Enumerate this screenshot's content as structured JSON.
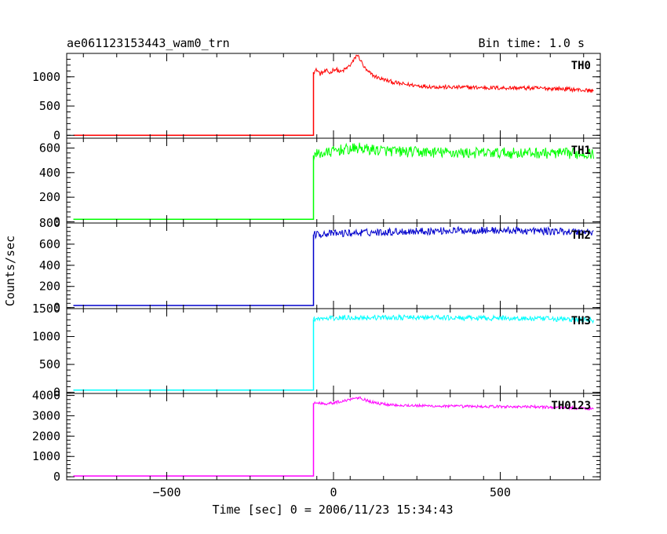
{
  "chart_data": {
    "type": "line",
    "title": "ae061123153443_wam0_trn",
    "bin_time_label": "Bin time: 1.0 s",
    "xlabel": "Time [sec] 0 = 2006/11/23 15:34:43",
    "ylabel": "Counts/sec",
    "xlim": [
      -800,
      800
    ],
    "xticks": [
      -500,
      0,
      500
    ],
    "xtick_labels": [
      "−500",
      "0",
      "500"
    ],
    "colors": {
      "TH0": "#ff0000",
      "TH1": "#00ff00",
      "TH2": "#0000cc",
      "TH3": "#00ffff",
      "TH0123": "#ff00ff"
    },
    "panels": [
      {
        "name": "TH0",
        "ylim": [
          -50,
          1400
        ],
        "yticks": [
          0,
          500,
          1000
        ],
        "ytick_labels": [
          "0",
          "500",
          "1000"
        ],
        "x": [
          -780,
          -60,
          -60,
          -50,
          -40,
          -30,
          -20,
          -10,
          0,
          10,
          20,
          30,
          40,
          50,
          60,
          70,
          80,
          90,
          100,
          120,
          140,
          170,
          200,
          250,
          300,
          350,
          400,
          450,
          500,
          550,
          600,
          650,
          700,
          750,
          780
        ],
        "y": [
          0,
          0,
          1080,
          1120,
          1050,
          1080,
          1100,
          1060,
          1130,
          1120,
          1080,
          1110,
          1150,
          1200,
          1270,
          1380,
          1300,
          1180,
          1100,
          1020,
          970,
          920,
          880,
          850,
          830,
          820,
          820,
          815,
          810,
          810,
          805,
          800,
          790,
          770,
          760
        ],
        "noise": 35
      },
      {
        "name": "TH1",
        "ylim": [
          -10,
          680
        ],
        "yticks": [
          0,
          200,
          400,
          600
        ],
        "ytick_labels": [
          "0",
          "200",
          "400",
          "600"
        ],
        "x": [
          -780,
          -60,
          -60,
          -40,
          -20,
          0,
          20,
          50,
          80,
          100,
          150,
          200,
          300,
          400,
          500,
          600,
          700,
          780
        ],
        "y": [
          20,
          20,
          540,
          555,
          560,
          575,
          585,
          590,
          600,
          590,
          580,
          570,
          565,
          560,
          560,
          560,
          555,
          555
        ],
        "noise": 45
      },
      {
        "name": "TH2",
        "ylim": [
          -10,
          800
        ],
        "yticks": [
          0,
          200,
          400,
          600,
          800
        ],
        "ytick_labels": [
          "0",
          "200",
          "400",
          "600",
          "800"
        ],
        "x": [
          -780,
          -60,
          -60,
          -30,
          0,
          50,
          100,
          200,
          300,
          400,
          500,
          600,
          700,
          780
        ],
        "y": [
          20,
          20,
          690,
          700,
          700,
          705,
          710,
          720,
          725,
          730,
          730,
          725,
          720,
          715
        ],
        "noise": 35
      },
      {
        "name": "TH3",
        "ylim": [
          -20,
          1500
        ],
        "yticks": [
          0,
          500,
          1000,
          1500
        ],
        "ytick_labels": [
          "0",
          "500",
          "1000",
          "1500"
        ],
        "x": [
          -780,
          -60,
          -60,
          -30,
          0,
          50,
          100,
          200,
          300,
          400,
          500,
          600,
          700,
          780
        ],
        "y": [
          40,
          40,
          1310,
          1320,
          1330,
          1340,
          1340,
          1340,
          1340,
          1330,
          1330,
          1320,
          1310,
          1290
        ],
        "noise": 45
      },
      {
        "name": "TH0123",
        "ylim": [
          -150,
          4100
        ],
        "yticks": [
          0,
          1000,
          2000,
          3000,
          4000
        ],
        "ytick_labels": [
          "0",
          "1000",
          "2000",
          "3000",
          "4000"
        ],
        "x": [
          -780,
          -60,
          -60,
          -40,
          -20,
          0,
          20,
          40,
          60,
          80,
          100,
          130,
          160,
          200,
          250,
          300,
          400,
          500,
          600,
          700,
          780
        ],
        "y": [
          40,
          40,
          3620,
          3620,
          3600,
          3640,
          3700,
          3760,
          3880,
          3900,
          3750,
          3620,
          3560,
          3520,
          3500,
          3480,
          3460,
          3450,
          3440,
          3400,
          3350
        ],
        "noise": 70
      }
    ]
  }
}
